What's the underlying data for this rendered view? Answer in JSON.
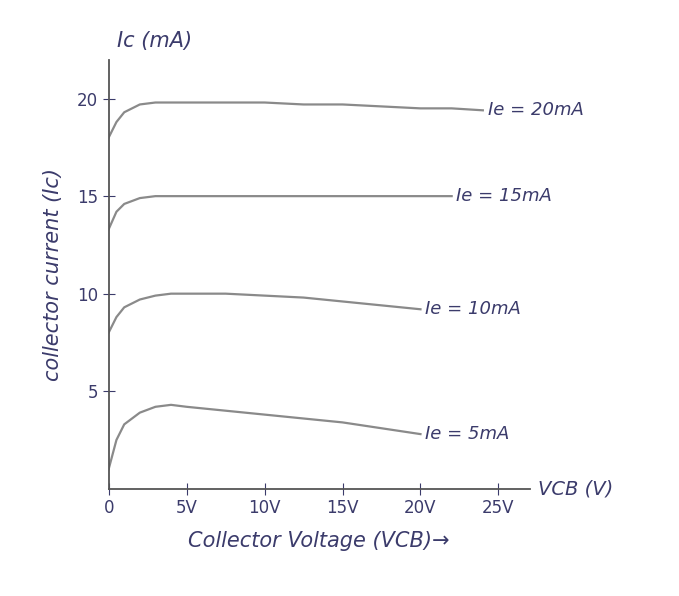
{
  "chart_data": {
    "type": "line",
    "x_label": "Collector Voltage (VCB)→",
    "y_label": "collector current (Ic)",
    "annotations": [
      "Ic (mA)",
      "VCB (V)"
    ],
    "x": [
      0,
      0.5,
      1,
      2,
      3,
      4,
      5,
      7.5,
      10,
      12.5,
      15,
      17.5,
      20,
      22,
      24
    ],
    "series": [
      {
        "name": "Ie = 20mA",
        "color": "#8a8a8a",
        "values": [
          18,
          18.8,
          19.3,
          19.7,
          19.8,
          19.8,
          19.8,
          19.8,
          19.8,
          19.7,
          19.7,
          19.6,
          19.5,
          19.5,
          19.4
        ]
      },
      {
        "name": "Ie = 15mA",
        "color": "#8a8a8a",
        "values": [
          13.3,
          14.2,
          14.6,
          14.9,
          15,
          15,
          15,
          15,
          15,
          15,
          15,
          15,
          15,
          15,
          null
        ]
      },
      {
        "name": "Ie = 10mA",
        "color": "#8a8a8a",
        "values": [
          8,
          8.8,
          9.3,
          9.7,
          9.9,
          10,
          10,
          10,
          9.9,
          9.8,
          9.6,
          9.4,
          9.2,
          null,
          null
        ]
      },
      {
        "name": "Ie = 5mA",
        "color": "#8a8a8a",
        "values": [
          1,
          2.5,
          3.3,
          3.9,
          4.2,
          4.3,
          4.2,
          4.0,
          3.8,
          3.6,
          3.4,
          3.1,
          2.8,
          null,
          null
        ]
      }
    ],
    "xlim": [
      0,
      27
    ],
    "ylim": [
      0,
      22
    ],
    "xticks": [
      0,
      {
        "value": 5,
        "label": "5V"
      },
      {
        "value": 10,
        "label": "10V"
      },
      {
        "value": 15,
        "label": "15V"
      },
      {
        "value": 20,
        "label": "20V"
      },
      {
        "value": 25,
        "label": "25V"
      }
    ],
    "yticks": [
      5,
      10,
      15,
      20
    ],
    "grid": false
  }
}
